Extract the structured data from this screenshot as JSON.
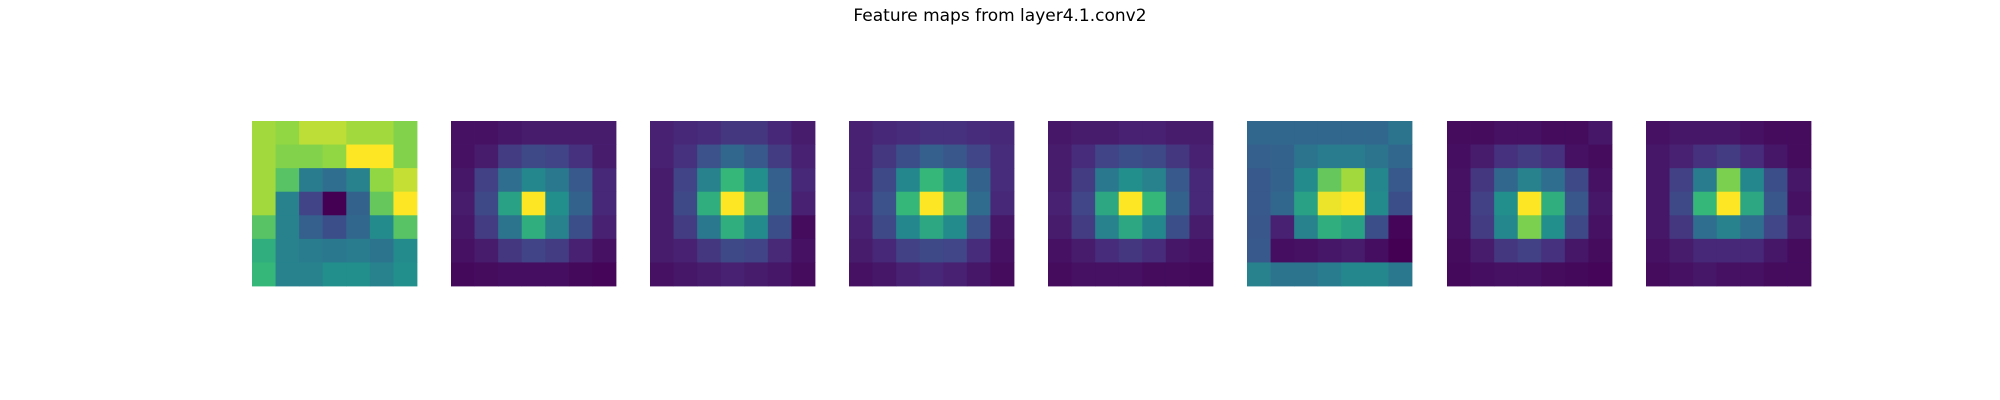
{
  "figure": {
    "title": "Feature maps from layer4.1.conv2"
  },
  "chart_data": {
    "type": "heatmap",
    "title": "Feature maps from layer4.1.conv2",
    "colormap": "viridis",
    "axes_visible": false,
    "grid": false,
    "panel_count": 8,
    "rows": 7,
    "cols": 7,
    "value_range": [
      0,
      1
    ],
    "maps": [
      [
        [
          0.9,
          0.88,
          0.93,
          0.93,
          0.9,
          0.9,
          0.86
        ],
        [
          0.9,
          0.86,
          0.86,
          0.88,
          1.0,
          1.0,
          0.86
        ],
        [
          0.9,
          0.8,
          0.52,
          0.45,
          0.55,
          0.88,
          0.94
        ],
        [
          0.9,
          0.55,
          0.25,
          0.0,
          0.4,
          0.82,
          1.0
        ],
        [
          0.8,
          0.55,
          0.38,
          0.3,
          0.42,
          0.6,
          0.8
        ],
        [
          0.72,
          0.55,
          0.52,
          0.5,
          0.52,
          0.48,
          0.6
        ],
        [
          0.75,
          0.55,
          0.55,
          0.62,
          0.62,
          0.55,
          0.62
        ]
      ],
      [
        [
          0.06,
          0.06,
          0.08,
          0.1,
          0.1,
          0.1,
          0.1
        ],
        [
          0.06,
          0.1,
          0.22,
          0.28,
          0.25,
          0.18,
          0.1
        ],
        [
          0.08,
          0.24,
          0.45,
          0.58,
          0.5,
          0.35,
          0.14
        ],
        [
          0.1,
          0.28,
          0.68,
          1.0,
          0.62,
          0.4,
          0.14
        ],
        [
          0.08,
          0.22,
          0.48,
          0.72,
          0.55,
          0.3,
          0.12
        ],
        [
          0.06,
          0.1,
          0.2,
          0.25,
          0.22,
          0.12,
          0.06
        ],
        [
          0.03,
          0.04,
          0.05,
          0.05,
          0.05,
          0.03,
          0.02
        ]
      ],
      [
        [
          0.12,
          0.14,
          0.16,
          0.2,
          0.2,
          0.14,
          0.1
        ],
        [
          0.12,
          0.18,
          0.32,
          0.42,
          0.35,
          0.22,
          0.12
        ],
        [
          0.1,
          0.25,
          0.55,
          0.75,
          0.62,
          0.38,
          0.14
        ],
        [
          0.1,
          0.28,
          0.72,
          1.0,
          0.8,
          0.4,
          0.12
        ],
        [
          0.1,
          0.22,
          0.5,
          0.72,
          0.6,
          0.3,
          0.04
        ],
        [
          0.1,
          0.12,
          0.2,
          0.28,
          0.25,
          0.15,
          0.06
        ],
        [
          0.06,
          0.08,
          0.1,
          0.12,
          0.1,
          0.08,
          0.04
        ]
      ],
      [
        [
          0.12,
          0.14,
          0.16,
          0.18,
          0.18,
          0.16,
          0.14
        ],
        [
          0.12,
          0.2,
          0.3,
          0.38,
          0.34,
          0.26,
          0.16
        ],
        [
          0.12,
          0.28,
          0.58,
          0.75,
          0.64,
          0.4,
          0.16
        ],
        [
          0.14,
          0.32,
          0.75,
          1.0,
          0.78,
          0.44,
          0.14
        ],
        [
          0.12,
          0.28,
          0.58,
          0.7,
          0.6,
          0.32,
          0.08
        ],
        [
          0.1,
          0.14,
          0.24,
          0.28,
          0.26,
          0.16,
          0.06
        ],
        [
          0.06,
          0.08,
          0.12,
          0.14,
          0.12,
          0.08,
          0.04
        ]
      ],
      [
        [
          0.08,
          0.1,
          0.1,
          0.12,
          0.12,
          0.1,
          0.1
        ],
        [
          0.1,
          0.16,
          0.25,
          0.3,
          0.28,
          0.2,
          0.12
        ],
        [
          0.1,
          0.22,
          0.5,
          0.62,
          0.55,
          0.35,
          0.14
        ],
        [
          0.12,
          0.26,
          0.7,
          1.0,
          0.75,
          0.4,
          0.14
        ],
        [
          0.1,
          0.22,
          0.55,
          0.7,
          0.58,
          0.3,
          0.1
        ],
        [
          0.06,
          0.1,
          0.16,
          0.2,
          0.16,
          0.08,
          0.06
        ],
        [
          0.04,
          0.06,
          0.06,
          0.06,
          0.04,
          0.04,
          0.03
        ]
      ],
      [
        [
          0.42,
          0.42,
          0.42,
          0.42,
          0.42,
          0.42,
          0.48
        ],
        [
          0.38,
          0.4,
          0.48,
          0.52,
          0.52,
          0.48,
          0.42
        ],
        [
          0.35,
          0.4,
          0.6,
          0.82,
          0.9,
          0.58,
          0.35
        ],
        [
          0.35,
          0.42,
          0.68,
          0.98,
          1.0,
          0.6,
          0.3
        ],
        [
          0.34,
          0.12,
          0.55,
          0.72,
          0.68,
          0.3,
          0.02
        ],
        [
          0.35,
          0.05,
          0.06,
          0.08,
          0.1,
          0.05,
          0.0
        ],
        [
          0.55,
          0.48,
          0.48,
          0.52,
          0.58,
          0.58,
          0.5
        ]
      ],
      [
        [
          0.04,
          0.04,
          0.06,
          0.06,
          0.04,
          0.04,
          0.08
        ],
        [
          0.05,
          0.1,
          0.18,
          0.22,
          0.18,
          0.06,
          0.04
        ],
        [
          0.06,
          0.2,
          0.42,
          0.55,
          0.45,
          0.28,
          0.06
        ],
        [
          0.06,
          0.24,
          0.62,
          1.0,
          0.72,
          0.34,
          0.08
        ],
        [
          0.06,
          0.22,
          0.58,
          0.85,
          0.62,
          0.28,
          0.06
        ],
        [
          0.04,
          0.1,
          0.2,
          0.24,
          0.18,
          0.08,
          0.04
        ],
        [
          0.03,
          0.05,
          0.06,
          0.06,
          0.04,
          0.03,
          0.02
        ]
      ],
      [
        [
          0.06,
          0.08,
          0.08,
          0.08,
          0.06,
          0.04,
          0.04
        ],
        [
          0.08,
          0.12,
          0.18,
          0.22,
          0.16,
          0.08,
          0.04
        ],
        [
          0.08,
          0.24,
          0.52,
          0.85,
          0.58,
          0.3,
          0.08
        ],
        [
          0.08,
          0.28,
          0.75,
          1.0,
          0.7,
          0.34,
          0.06
        ],
        [
          0.08,
          0.2,
          0.45,
          0.55,
          0.45,
          0.26,
          0.1
        ],
        [
          0.06,
          0.1,
          0.14,
          0.14,
          0.14,
          0.08,
          0.04
        ],
        [
          0.04,
          0.06,
          0.08,
          0.06,
          0.06,
          0.04,
          0.04
        ]
      ]
    ]
  }
}
